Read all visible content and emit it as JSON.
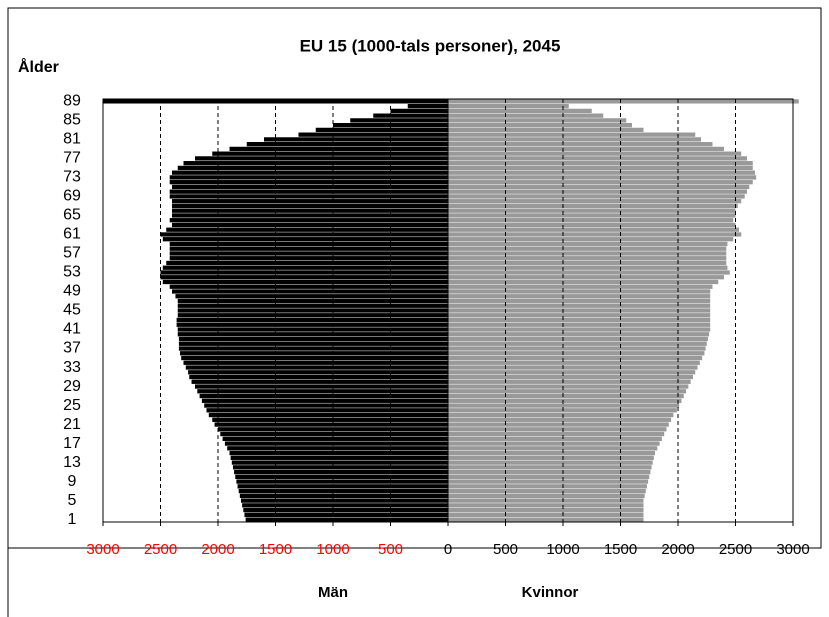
{
  "chart_data": {
    "type": "pyramid",
    "title": "EU 15 (1000-tals personer), 2045",
    "y_axis_label": "Ålder",
    "left_label": "Män",
    "right_label": "Kvinnor",
    "categories": [
      "1",
      null,
      null,
      null,
      "5",
      null,
      null,
      null,
      "9",
      null,
      null,
      null,
      "13",
      null,
      null,
      null,
      "17",
      null,
      null,
      null,
      "21",
      null,
      null,
      null,
      "25",
      null,
      null,
      null,
      "29",
      null,
      null,
      null,
      "33",
      null,
      null,
      null,
      "37",
      null,
      null,
      null,
      "41",
      null,
      null,
      null,
      "45",
      null,
      null,
      null,
      "49",
      null,
      null,
      null,
      "53",
      null,
      null,
      null,
      "57",
      null,
      null,
      null,
      "61",
      null,
      null,
      null,
      "65",
      null,
      null,
      null,
      "69",
      null,
      null,
      null,
      "73",
      null,
      null,
      null,
      "77",
      null,
      null,
      null,
      "81",
      null,
      null,
      null,
      "85",
      null,
      null,
      null,
      "89"
    ],
    "series": [
      {
        "name": "Män",
        "side": "left",
        "color": "#000000",
        "values": [
          1760,
          1770,
          1780,
          1790,
          1800,
          1810,
          1820,
          1830,
          1840,
          1850,
          1860,
          1870,
          1880,
          1890,
          1900,
          1920,
          1940,
          1960,
          1980,
          2000,
          2030,
          2050,
          2080,
          2100,
          2120,
          2140,
          2160,
          2180,
          2200,
          2230,
          2250,
          2260,
          2280,
          2300,
          2320,
          2330,
          2340,
          2340,
          2340,
          2350,
          2350,
          2360,
          2360,
          2350,
          2350,
          2350,
          2350,
          2370,
          2400,
          2420,
          2480,
          2500,
          2500,
          2480,
          2450,
          2420,
          2420,
          2420,
          2420,
          2480,
          2500,
          2450,
          2400,
          2420,
          2400,
          2400,
          2400,
          2400,
          2420,
          2420,
          2400,
          2420,
          2420,
          2400,
          2350,
          2300,
          2200,
          2050,
          1900,
          1750,
          1600,
          1300,
          1150,
          1000,
          850,
          650,
          500,
          350,
          3000
        ]
      },
      {
        "name": "Kvinnor",
        "side": "right",
        "color": "#999999",
        "values": [
          1700,
          1700,
          1700,
          1700,
          1700,
          1710,
          1720,
          1730,
          1740,
          1750,
          1760,
          1770,
          1780,
          1790,
          1800,
          1820,
          1840,
          1860,
          1880,
          1900,
          1920,
          1940,
          1960,
          1990,
          2010,
          2030,
          2050,
          2070,
          2090,
          2110,
          2130,
          2150,
          2170,
          2190,
          2210,
          2230,
          2240,
          2250,
          2260,
          2270,
          2280,
          2280,
          2280,
          2280,
          2280,
          2280,
          2280,
          2280,
          2280,
          2300,
          2350,
          2400,
          2450,
          2430,
          2420,
          2420,
          2420,
          2420,
          2430,
          2480,
          2550,
          2530,
          2500,
          2480,
          2500,
          2500,
          2520,
          2550,
          2580,
          2600,
          2620,
          2650,
          2680,
          2670,
          2650,
          2650,
          2600,
          2550,
          2400,
          2300,
          2200,
          2150,
          1700,
          1600,
          1550,
          1350,
          1250,
          1050,
          3050
        ]
      }
    ],
    "xlim": [
      0,
      3000
    ],
    "xticks_left": [
      3000,
      2500,
      2000,
      1500,
      1000,
      500
    ],
    "xticks_right": [
      0,
      500,
      1000,
      1500,
      2000,
      2500,
      3000
    ],
    "left_tick_color": "#ff0000",
    "right_tick_color": "#000000",
    "grid": true
  }
}
